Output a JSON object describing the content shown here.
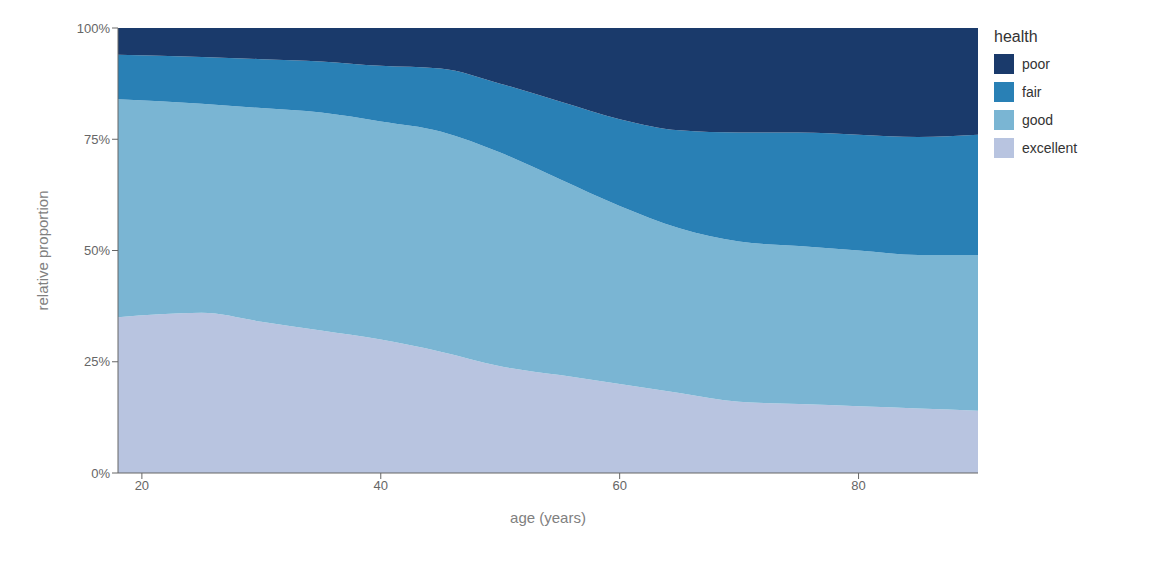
{
  "chart_data": {
    "type": "area",
    "stacked": true,
    "xlabel": "age (years)",
    "ylabel": "relative proportion",
    "legend_title": "health",
    "legend": "right",
    "grid": false,
    "x": [
      18,
      25,
      30,
      35,
      40,
      45,
      50,
      55,
      60,
      65,
      70,
      75,
      80,
      85,
      90
    ],
    "series": [
      {
        "name": "excellent",
        "color": "#b8c4e0",
        "values": [
          0.35,
          0.36,
          0.34,
          0.32,
          0.3,
          0.27272727272727,
          0.24,
          0.22,
          0.2,
          0.18,
          0.16,
          0.155,
          0.15,
          0.145,
          0.14
        ]
      },
      {
        "name": "good",
        "color": "#7ab5d3",
        "values": [
          0.49,
          0.47,
          0.48,
          0.49,
          0.49,
          0.49494949494949,
          0.48,
          0.44,
          0.4,
          0.37,
          0.36,
          0.355,
          0.35,
          0.345,
          0.35
        ]
      },
      {
        "name": "fair",
        "color": "#2980b5",
        "values": [
          0.1,
          0.105,
          0.11,
          0.115,
          0.125,
          0.14141414141414,
          0.155,
          0.175,
          0.195,
          0.22,
          0.245,
          0.255,
          0.26,
          0.265,
          0.27
        ]
      },
      {
        "name": "poor",
        "color": "#1a3a6b",
        "values": [
          0.06,
          0.065,
          0.07,
          0.075,
          0.085,
          0.09090909090909,
          0.125,
          0.165,
          0.205,
          0.23,
          0.235,
          0.235,
          0.24,
          0.245,
          0.24
        ]
      }
    ],
    "xlim": [
      18,
      90
    ],
    "ylim": [
      0,
      1
    ],
    "xticks": [
      20,
      40,
      60,
      80
    ],
    "yticks": [
      {
        "value": 0,
        "label": "0%"
      },
      {
        "value": 0.25,
        "label": "25%"
      },
      {
        "value": 0.5,
        "label": "50%"
      },
      {
        "value": 0.75,
        "label": "75%"
      },
      {
        "value": 1.0,
        "label": "100%"
      }
    ]
  }
}
